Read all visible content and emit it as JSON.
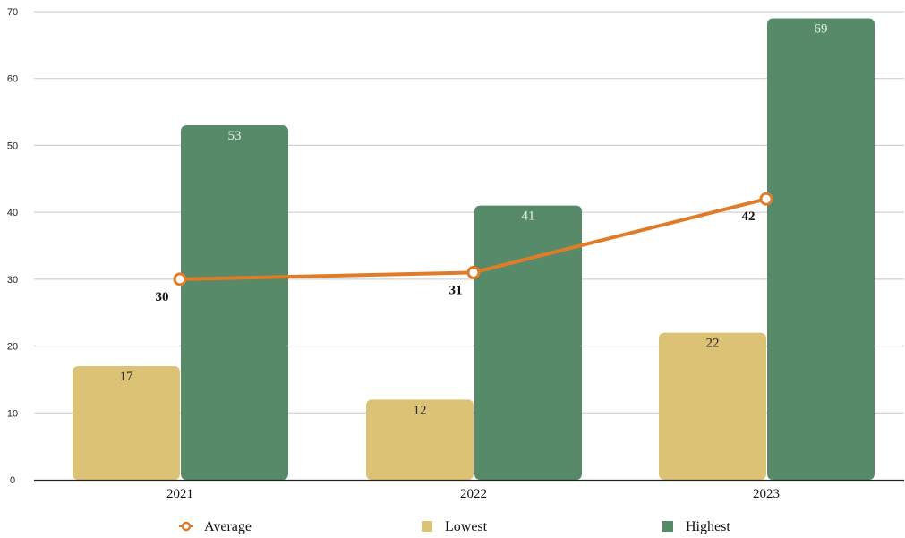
{
  "chart_data": {
    "type": "bar",
    "categories": [
      "2021",
      "2022",
      "2023"
    ],
    "series": [
      {
        "name": "Lowest",
        "kind": "bar",
        "color": "#dcc274",
        "label_color": "#2a2a2a",
        "values": [
          17,
          12,
          22
        ]
      },
      {
        "name": "Highest",
        "kind": "bar",
        "color": "#568a69",
        "label_color": "#e8efe4",
        "values": [
          53,
          41,
          69
        ]
      },
      {
        "name": "Average",
        "kind": "line",
        "color": "#e07b2a",
        "values": [
          30,
          31,
          42
        ]
      }
    ],
    "y_ticks": [
      "0",
      "10",
      "20",
      "30",
      "40",
      "50",
      "60",
      "70"
    ],
    "ylim": [
      0,
      70
    ],
    "grid": true,
    "legend_position": "bottom",
    "legend_order": [
      "Average",
      "Lowest",
      "Highest"
    ]
  }
}
